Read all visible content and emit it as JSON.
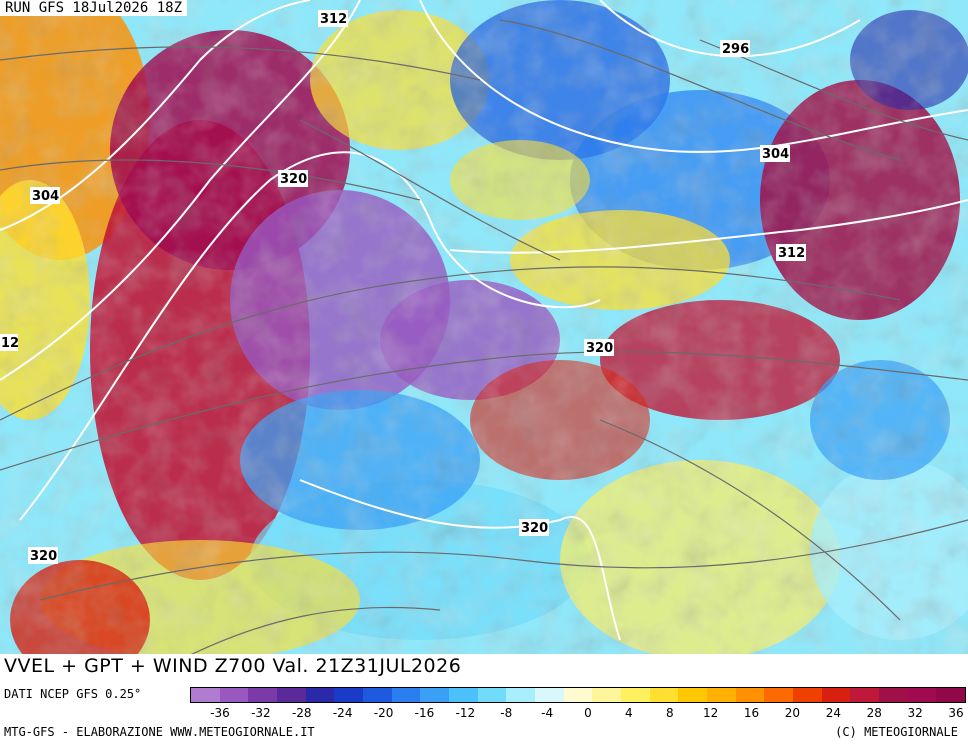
{
  "header": {
    "run_label": "RUN GFS 18Jul2026 18Z"
  },
  "title": "VVEL + GPT + WIND Z700 Val. 21Z31JUL2026",
  "source": "DATI NCEP GFS 0.25°",
  "footer": {
    "left": "MTG-GFS - ELABORAZIONE WWW.METEOGIORNALE.IT",
    "right": "(C) METEOGIORNALE"
  },
  "legend": {
    "ticks": [
      "-36",
      "-32",
      "-28",
      "-24",
      "-20",
      "-16",
      "-12",
      "-8",
      "-4",
      "0",
      "4",
      "8",
      "12",
      "16",
      "20",
      "24",
      "28",
      "32",
      "36"
    ],
    "colors": [
      "#b07cd0",
      "#9858c0",
      "#7a3aa8",
      "#5a2a9a",
      "#2a2aa8",
      "#1a3ac8",
      "#1e5ae0",
      "#2a7ef0",
      "#3aa0f5",
      "#4cc0f8",
      "#70dcfa",
      "#a8eefc",
      "#d8f8fc",
      "#fffbd0",
      "#fff59a",
      "#fff060",
      "#ffe030",
      "#ffc800",
      "#ffb000",
      "#ff9000",
      "#ff6a00",
      "#f04000",
      "#d82010",
      "#c01838",
      "#a01048",
      "#a00a50",
      "#90084a"
    ]
  },
  "contour_labels": [
    "312",
    "296",
    "304",
    "320",
    "304",
    "312",
    "12",
    "320",
    "320",
    "320",
    "320"
  ],
  "map_colors": {
    "cyan": "#8ee8fa",
    "blue": "#1e5ae0",
    "yellow": "#ffe030",
    "red": "#e02a10",
    "purple": "#9858c0",
    "magenta": "#a8104a",
    "streamline": "#6a6a6a",
    "contour": "#ffffff"
  }
}
